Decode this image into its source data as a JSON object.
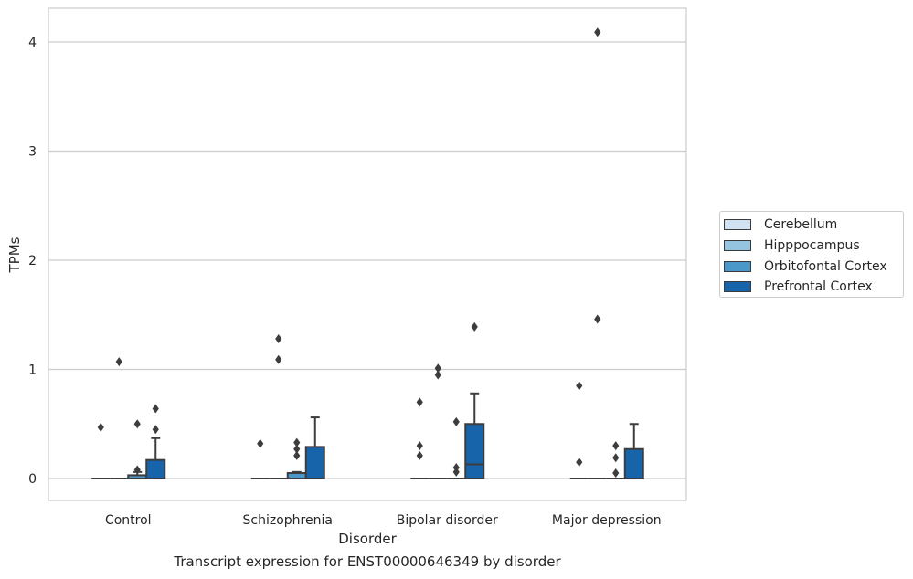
{
  "chart_data": {
    "type": "box",
    "title": "",
    "caption": "Transcript expression for ENST00000646349 by disorder",
    "xlabel": "Disorder",
    "ylabel": "TPMs",
    "ylim": [
      -0.2,
      4.3
    ],
    "yticks": [
      0,
      1,
      2,
      3,
      4
    ],
    "grid": true,
    "legend_position": "right",
    "categories": [
      "Control",
      "Schizophrenia",
      "Bipolar disorder",
      "Major depression"
    ],
    "series": [
      {
        "name": "Cerebellum",
        "color": "#d0e1f2",
        "boxes": [
          {
            "q1": 0,
            "median": 0,
            "q3": 0,
            "whislo": 0,
            "whishi": 0,
            "fliers": [
              0.47
            ]
          },
          {
            "q1": 0,
            "median": 0,
            "q3": 0,
            "whislo": 0,
            "whishi": 0,
            "fliers": [
              0.32
            ]
          },
          {
            "q1": 0,
            "median": 0,
            "q3": 0,
            "whislo": 0,
            "whishi": 0,
            "fliers": [
              0.7,
              0.3,
              0.21
            ]
          },
          {
            "q1": 0,
            "median": 0,
            "q3": 0,
            "whislo": 0,
            "whishi": 0,
            "fliers": [
              0.85,
              0.15
            ]
          }
        ]
      },
      {
        "name": "Hipppocampus",
        "color": "#94c4df",
        "boxes": [
          {
            "q1": 0,
            "median": 0,
            "q3": 0,
            "whislo": 0,
            "whishi": 0,
            "fliers": [
              1.07
            ]
          },
          {
            "q1": 0,
            "median": 0,
            "q3": 0,
            "whislo": 0,
            "whishi": 0,
            "fliers": [
              1.28,
              1.09
            ]
          },
          {
            "q1": 0,
            "median": 0,
            "q3": 0,
            "whislo": 0,
            "whishi": 0,
            "fliers": [
              1.01,
              0.95
            ]
          },
          {
            "q1": 0,
            "median": 0,
            "q3": 0,
            "whislo": 0,
            "whishi": 0,
            "fliers": [
              4.09,
              1.46
            ]
          }
        ]
      },
      {
        "name": "Orbitofontal Cortex",
        "color": "#4a98c9",
        "boxes": [
          {
            "q1": 0,
            "median": 0,
            "q3": 0.03,
            "whislo": 0,
            "whishi": 0.06,
            "fliers": [
              0.5,
              0.08
            ]
          },
          {
            "q1": 0,
            "median": 0,
            "q3": 0.05,
            "whislo": 0,
            "whishi": 0.06,
            "fliers": []
          },
          {
            "q1": 0,
            "median": 0,
            "q3": 0,
            "whislo": 0,
            "whishi": 0,
            "fliers": [
              0.52,
              0.1,
              0.06
            ]
          },
          {
            "q1": 0,
            "median": 0,
            "q3": 0,
            "whislo": 0,
            "whishi": 0,
            "fliers": []
          }
        ]
      },
      {
        "name": "Prefrontal Cortex",
        "color": "#1764ab",
        "boxes": [
          {
            "q1": 0,
            "median": 0,
            "q3": 0.17,
            "whislo": 0,
            "whishi": 0.37,
            "fliers": [
              0.64,
              0.45
            ]
          },
          {
            "q1": 0,
            "median": 0,
            "q3": 0.29,
            "whislo": 0,
            "whishi": 0.56,
            "fliers": []
          },
          {
            "q1": 0,
            "median": 0.13,
            "q3": 0.5,
            "whislo": 0,
            "whishi": 0.78,
            "fliers": [
              1.39
            ]
          },
          {
            "q1": 0,
            "median": 0,
            "q3": 0.27,
            "whislo": 0,
            "whishi": 0.5,
            "fliers": []
          }
        ]
      }
    ],
    "extra_fliers": [
      {
        "category": 1,
        "series": 2,
        "fliers": [
          0.33,
          0.27,
          0.21
        ]
      },
      {
        "category": 3,
        "series": 2,
        "fliers": [
          0.3,
          0.19,
          0.05
        ]
      }
    ]
  }
}
